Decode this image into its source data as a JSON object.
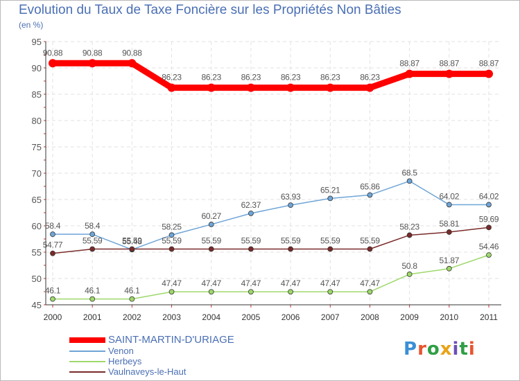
{
  "header": {
    "title": "Evolution du Taux de Taxe Foncière sur les Propriétés Non Bâties",
    "subtitle": "(en %)"
  },
  "logo": {
    "text": "Proxiti",
    "letter_colors": [
      "#3a8fd6",
      "#e8542f",
      "#2f9e44",
      "#e8a317",
      "#6c4fb4",
      "#2f9e44",
      "#e8542f"
    ]
  },
  "chart_data": {
    "type": "line",
    "title": "Evolution du Taux de Taxe Foncière sur les Propriétés Non Bâties",
    "subtitle": "(en %)",
    "xlabel": "",
    "ylabel": "",
    "ylim": [
      45,
      95
    ],
    "yticks": [
      45,
      50,
      55,
      60,
      65,
      70,
      75,
      80,
      85,
      90,
      95
    ],
    "grid": true,
    "legend_position": "bottom-left",
    "categories": [
      "2000",
      "2001",
      "2002",
      "2003",
      "2004",
      "2005",
      "2006",
      "2007",
      "2008",
      "2009",
      "2010",
      "2011"
    ],
    "series": [
      {
        "name": "SAINT-MARTIN-D'URIAGE",
        "color": "#ff0000",
        "emphasis": true,
        "values": [
          90.88,
          90.88,
          90.88,
          86.23,
          86.23,
          86.23,
          86.23,
          86.23,
          86.23,
          88.87,
          88.87,
          88.87
        ],
        "labels": [
          "90.88",
          "90.88",
          "90.88",
          "86.23",
          "86.23",
          "86.23",
          "86.23",
          "86.23",
          "86.23",
          "88.87",
          "88.87",
          "88.87"
        ]
      },
      {
        "name": "Venon",
        "color": "#6fa5d7",
        "values": [
          58.4,
          58.4,
          55.48,
          58.25,
          60.27,
          62.37,
          63.93,
          65.21,
          65.86,
          68.5,
          64.02,
          64.02
        ],
        "labels": [
          "58.4",
          "58.4",
          "55.48",
          "58.25",
          "60.27",
          "62.37",
          "63.93",
          "65.21",
          "65.86",
          "68.5",
          "64.02",
          "64.02"
        ]
      },
      {
        "name": "Herbeys",
        "color": "#9ed86b",
        "values": [
          46.1,
          46.1,
          46.1,
          47.47,
          47.47,
          47.47,
          47.47,
          47.47,
          47.47,
          50.8,
          51.87,
          54.46
        ],
        "labels": [
          "46.1",
          "46.1",
          "46.1",
          "47.47",
          "47.47",
          "47.47",
          "47.47",
          "47.47",
          "47.47",
          "50.8",
          "51.87",
          "54.46"
        ]
      },
      {
        "name": "Vaulnaveys-le-Haut",
        "color": "#7a2a2a",
        "values": [
          54.77,
          55.59,
          55.59,
          55.59,
          55.59,
          55.59,
          55.59,
          55.59,
          55.59,
          58.23,
          58.81,
          59.69
        ],
        "labels": [
          "54.77",
          "55.59",
          "55.59",
          "55.59",
          "55.59",
          "55.59",
          "55.59",
          "55.59",
          "55.59",
          "58.23",
          "58.81",
          "59.69"
        ]
      }
    ]
  }
}
